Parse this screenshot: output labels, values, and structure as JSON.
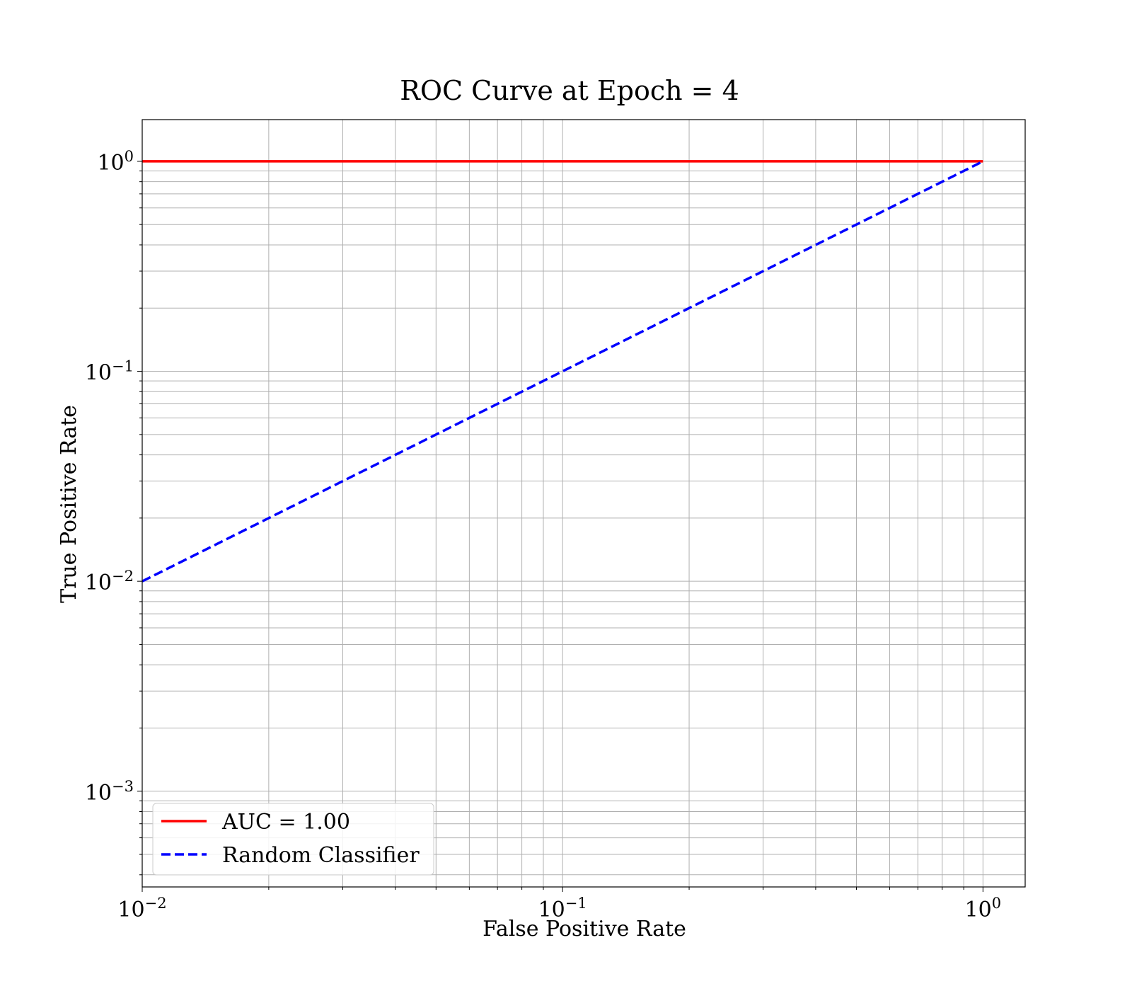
{
  "chart_data": {
    "type": "line",
    "title": "ROC Curve at Epoch = 4",
    "xlabel": "False Positive Rate",
    "ylabel": "True Positive Rate",
    "xscale": "log",
    "yscale": "log",
    "xlim": [
      0.01,
      1.26
    ],
    "ylim": [
      0.00035,
      1.58
    ],
    "xticks": [
      {
        "value": 0.01,
        "base": "10",
        "exp": "−2"
      },
      {
        "value": 0.1,
        "base": "10",
        "exp": "−1"
      },
      {
        "value": 1,
        "base": "10",
        "exp": "0"
      }
    ],
    "yticks": [
      {
        "value": 0.001,
        "base": "10",
        "exp": "−3"
      },
      {
        "value": 0.01,
        "base": "10",
        "exp": "−2"
      },
      {
        "value": 0.1,
        "base": "10",
        "exp": "−1"
      },
      {
        "value": 1,
        "base": "10",
        "exp": "0"
      }
    ],
    "grid": true,
    "grid_minor": true,
    "legend_position": "lower-left",
    "series": [
      {
        "name": "AUC = 1.00",
        "color": "#ff0000",
        "style": "solid",
        "x": [
          0.01,
          1.0
        ],
        "y": [
          1.0,
          1.0
        ]
      },
      {
        "name": "Random Classifier",
        "color": "#0000ff",
        "style": "dashed",
        "x": [
          0.01,
          1.0
        ],
        "y": [
          0.01,
          1.0
        ]
      }
    ]
  }
}
